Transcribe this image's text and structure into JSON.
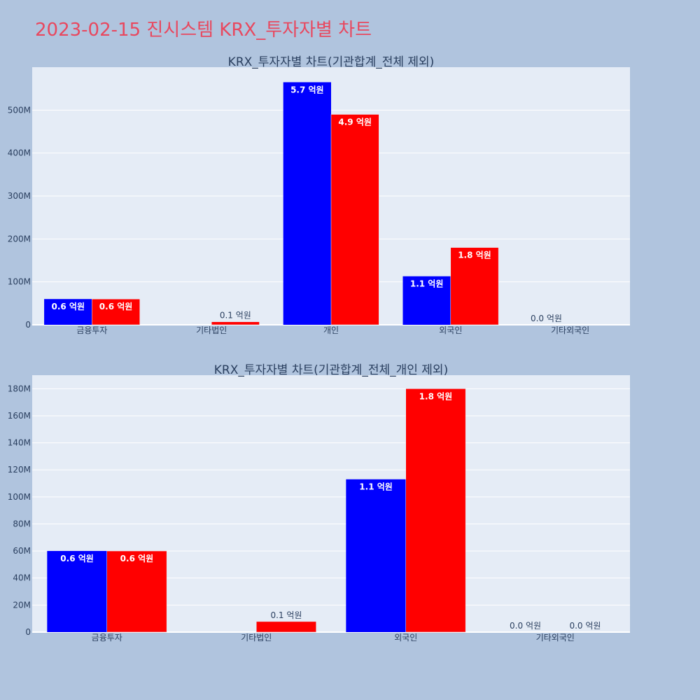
{
  "page_title": "2023-02-15 진시스템 KRX_투자자별 차트",
  "colors": {
    "background": "#b0c4de",
    "plot_background": "#e5ecf6",
    "title": "#e8485f",
    "series_1": "#0000ff",
    "series_2": "#ff0000"
  },
  "chart_data": [
    {
      "type": "bar",
      "title": "KRX_투자자별 차트(기관합계_전체 제외)",
      "xlabel": "",
      "ylabel": "",
      "ylim": [
        0,
        600000000
      ],
      "yticks": [
        0,
        100000000,
        200000000,
        300000000,
        400000000,
        500000000
      ],
      "ytick_labels": [
        "0",
        "100M",
        "200M",
        "300M",
        "400M",
        "500M"
      ],
      "grid": true,
      "categories": [
        "금융투자",
        "기타법인",
        "개인",
        "외국인",
        "기타외국인"
      ],
      "series": [
        {
          "values": [
            60000000,
            0,
            565000000,
            113000000,
            0
          ],
          "labels": [
            "0.6 억원",
            "",
            "5.7 억원",
            "1.1 억원",
            "0.0 억원"
          ]
        },
        {
          "values": [
            60000000,
            7000000,
            490000000,
            180000000,
            0
          ],
          "labels": [
            "0.6 억원",
            "0.1 억원",
            "4.9 억원",
            "1.8 억원",
            ""
          ]
        }
      ]
    },
    {
      "type": "bar",
      "title": "KRX_투자자별 차트(기관합계_전체_개인 제외)",
      "xlabel": "",
      "ylabel": "",
      "ylim": [
        0,
        190000000
      ],
      "yticks": [
        0,
        20000000,
        40000000,
        60000000,
        80000000,
        100000000,
        120000000,
        140000000,
        160000000,
        180000000
      ],
      "ytick_labels": [
        "0",
        "20M",
        "40M",
        "60M",
        "80M",
        "100M",
        "120M",
        "140M",
        "160M",
        "180M"
      ],
      "grid": true,
      "categories": [
        "금융투자",
        "기타법인",
        "외국인",
        "기타외국인"
      ],
      "series": [
        {
          "values": [
            60000000,
            0,
            113000000,
            0
          ],
          "labels": [
            "0.6 억원",
            "",
            "1.1 억원",
            "0.0 억원"
          ]
        },
        {
          "values": [
            60000000,
            7800000,
            180000000,
            0
          ],
          "labels": [
            "0.6 억원",
            "0.1 억원",
            "1.8 억원",
            "0.0 억원"
          ]
        }
      ]
    }
  ]
}
